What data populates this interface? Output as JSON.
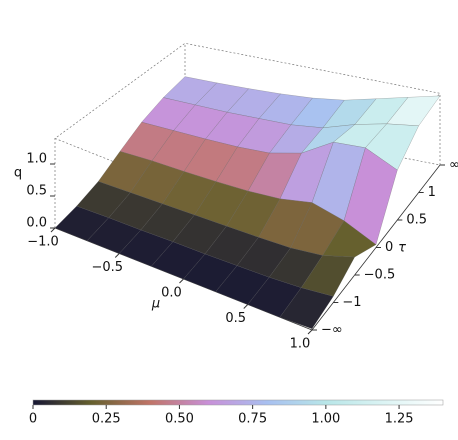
{
  "chart_data": {
    "type": "surface",
    "z_label": "q",
    "x_label": "μ",
    "y_label": "τ",
    "x": [
      -1,
      -0.75,
      -0.5,
      -0.25,
      0,
      0.25,
      0.5,
      0.75,
      1
    ],
    "xlim": [
      -1,
      1
    ],
    "xticks": [
      {
        "value": -1,
        "label": "−1.0"
      },
      {
        "value": -0.5,
        "label": "−0.5"
      },
      {
        "value": 0,
        "label": "0.0"
      },
      {
        "value": 0.5,
        "label": "0.5"
      },
      {
        "value": 1,
        "label": "1.0"
      }
    ],
    "y_categories": [
      "−∞",
      "−1",
      "−0.5",
      "0",
      "0.5",
      "1",
      "∞"
    ],
    "zticks": [
      {
        "value": 0,
        "label": "0.0"
      },
      {
        "value": 0.5,
        "label": "0.5"
      },
      {
        "value": 1,
        "label": "1.0"
      }
    ],
    "q": [
      [
        0,
        0,
        0,
        0,
        0,
        0,
        0,
        0,
        0.02
      ],
      [
        0.05,
        0.05,
        0.04,
        0.04,
        0.03,
        0.03,
        0.03,
        0.05,
        0.1
      ],
      [
        0.15,
        0.14,
        0.13,
        0.12,
        0.11,
        0.1,
        0.1,
        0.15,
        0.3
      ],
      [
        0.35,
        0.35,
        0.33,
        0.32,
        0.32,
        0.35,
        0.45,
        0.3,
        0.05
      ],
      [
        0.55,
        0.55,
        0.55,
        0.56,
        0.6,
        0.75,
        1.1,
        1.15,
        0.9
      ],
      [
        0.68,
        0.68,
        0.68,
        0.7,
        0.72,
        0.8,
        1.0,
        1.15,
        1.25
      ],
      [
        0.75,
        0.75,
        0.76,
        0.78,
        0.82,
        0.9,
        1.05,
        1.2,
        1.35
      ]
    ],
    "clim": [
      0,
      1.4
    ],
    "colormap": [
      "#161633",
      "#66602e",
      "#c07468",
      "#c890d8",
      "#a8c0f0",
      "#b8e6e8",
      "#dcf4f4",
      "#ffffff"
    ],
    "cticks": [
      0,
      0.25,
      {
        "value": 0.5,
        "label": "0.50"
      },
      {
        "value": 0.75,
        "label": "0.75"
      },
      {
        "value": 1,
        "label": "1.00"
      },
      {
        "value": 1.25,
        "label": "1.25"
      }
    ]
  }
}
